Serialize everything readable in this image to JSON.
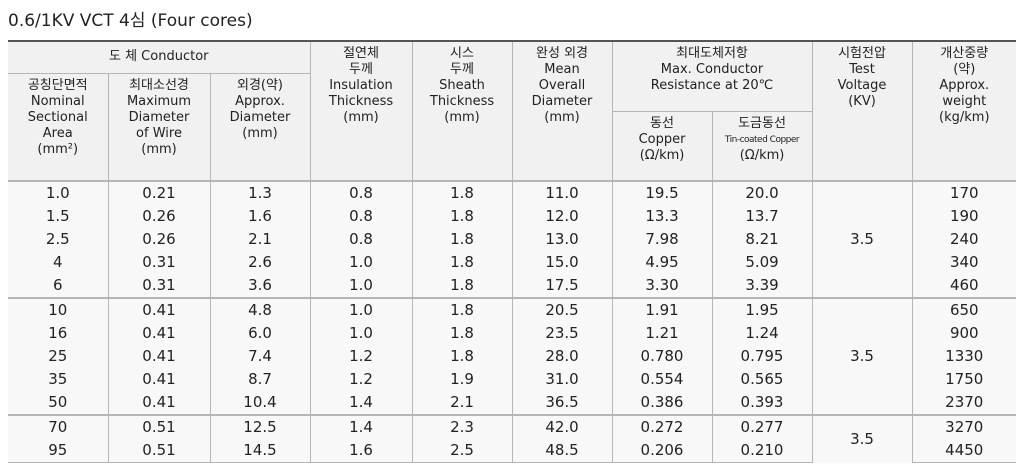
{
  "title": "0.6/1KV VCT 4심 (Four cores)",
  "table": {
    "conductor_header": "도 체  Conductor",
    "resistance_header": [
      "최대도체저항",
      "Max. Conductor",
      "Resistance at 20℃"
    ],
    "columns": [
      [
        "공칭단면적",
        "Nominal",
        "Sectional",
        "Area",
        "(mm²)"
      ],
      [
        "최대소선경",
        "Maximum",
        "Diameter",
        "of Wire",
        "(mm)"
      ],
      [
        "외경(약)",
        "Approx.",
        "Diameter",
        "(mm)"
      ],
      [
        "절연체",
        "두께",
        "Insulation",
        "Thickness",
        "(mm)"
      ],
      [
        "시스",
        "두께",
        "Sheath",
        "Thickness",
        "(mm)"
      ],
      [
        "완성 외경",
        "Mean",
        "Overall",
        "Diameter",
        "(mm)"
      ],
      [
        "동선",
        "Copper",
        "(Ω/km)"
      ],
      [
        "도금동선",
        "Tin-coated Copper",
        "(Ω/km)"
      ],
      [
        "시험전압",
        "Test",
        "Voltage",
        "(KV)"
      ],
      [
        "개산중량",
        "(약)",
        "Approx.",
        "weight",
        "(kg/km)"
      ]
    ],
    "groups": [
      {
        "test_voltage": "3.5",
        "rows": [
          [
            "1.0",
            "0.21",
            "1.3",
            "0.8",
            "1.8",
            "11.0",
            "19.5",
            "20.0",
            "170"
          ],
          [
            "1.5",
            "0.26",
            "1.6",
            "0.8",
            "1.8",
            "12.0",
            "13.3",
            "13.7",
            "190"
          ],
          [
            "2.5",
            "0.26",
            "2.1",
            "0.8",
            "1.8",
            "13.0",
            "7.98",
            "8.21",
            "240"
          ],
          [
            "4",
            "0.31",
            "2.6",
            "1.0",
            "1.8",
            "15.0",
            "4.95",
            "5.09",
            "340"
          ],
          [
            "6",
            "0.31",
            "3.6",
            "1.0",
            "1.8",
            "17.5",
            "3.30",
            "3.39",
            "460"
          ]
        ]
      },
      {
        "test_voltage": "3.5",
        "rows": [
          [
            "10",
            "0.41",
            "4.8",
            "1.0",
            "1.8",
            "20.5",
            "1.91",
            "1.95",
            "650"
          ],
          [
            "16",
            "0.41",
            "6.0",
            "1.0",
            "1.8",
            "23.5",
            "1.21",
            "1.24",
            "900"
          ],
          [
            "25",
            "0.41",
            "7.4",
            "1.2",
            "1.8",
            "28.0",
            "0.780",
            "0.795",
            "1330"
          ],
          [
            "35",
            "0.41",
            "8.7",
            "1.2",
            "1.9",
            "31.0",
            "0.554",
            "0.565",
            "1750"
          ],
          [
            "50",
            "0.41",
            "10.4",
            "1.4",
            "2.1",
            "36.5",
            "0.386",
            "0.393",
            "2370"
          ]
        ]
      },
      {
        "test_voltage": "3.5",
        "rows": [
          [
            "70",
            "0.51",
            "12.5",
            "1.4",
            "2.3",
            "42.0",
            "0.272",
            "0.277",
            "3270"
          ],
          [
            "95",
            "0.51",
            "14.5",
            "1.6",
            "2.5",
            "48.5",
            "0.206",
            "0.210",
            "4450"
          ]
        ]
      }
    ]
  }
}
